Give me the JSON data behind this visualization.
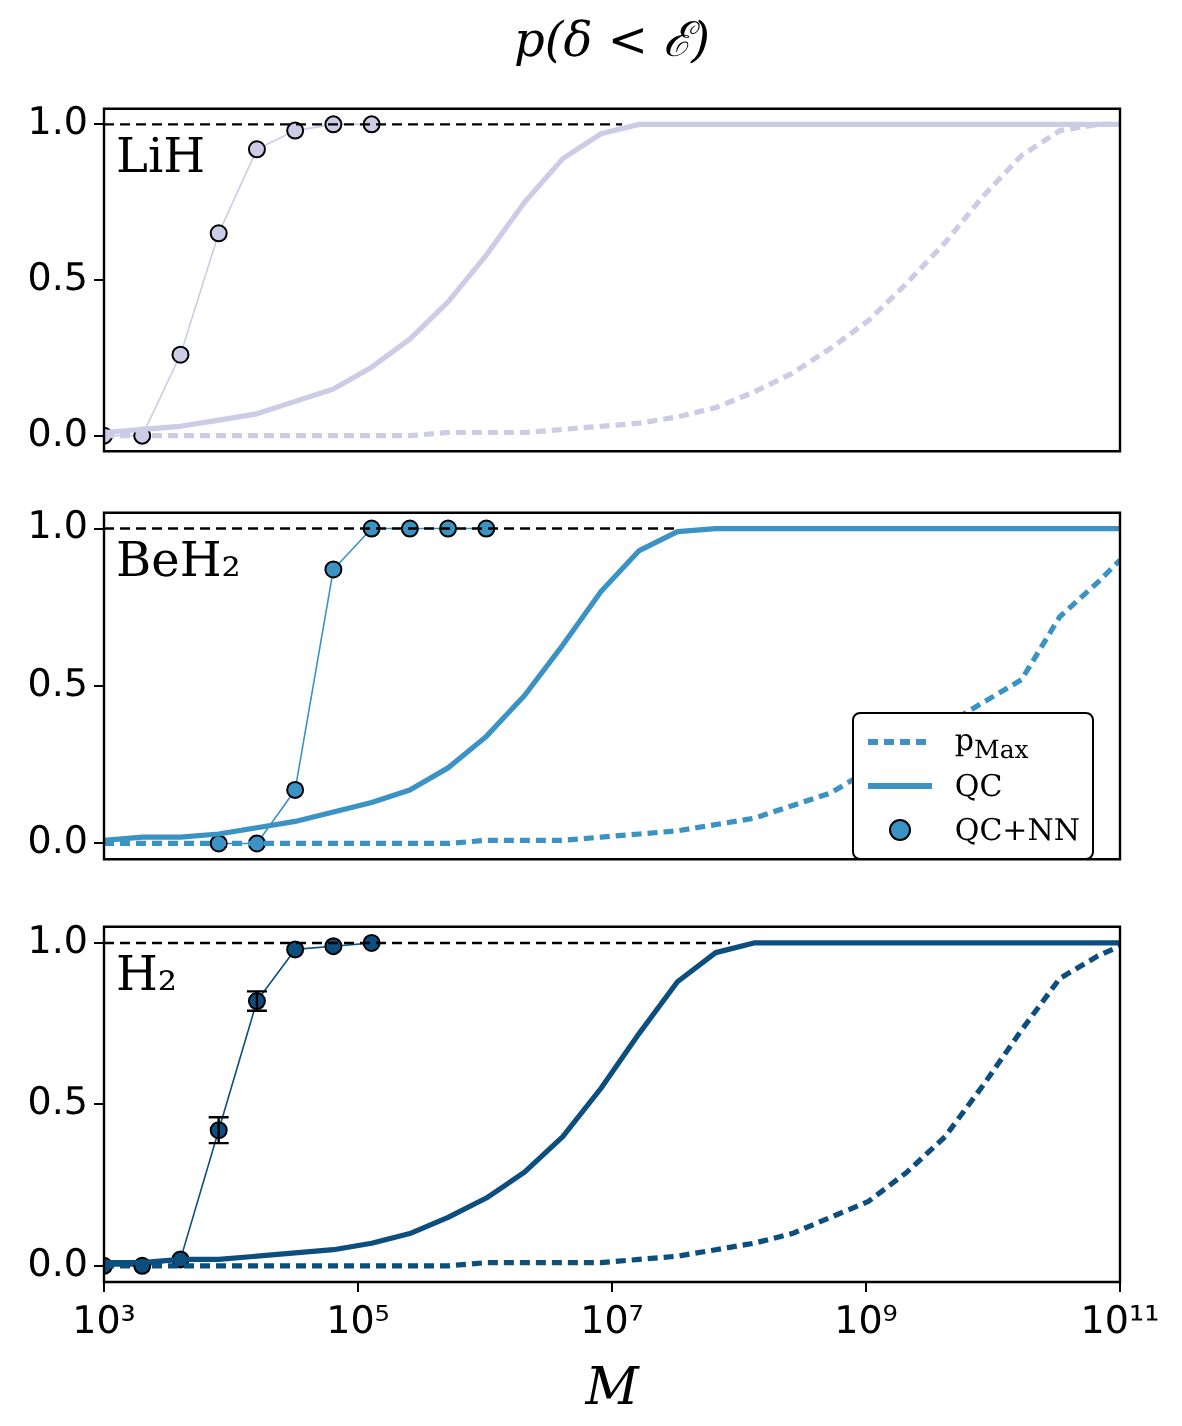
{
  "chart_data": [
    {
      "type": "line",
      "title": "p(δ < ℰ)",
      "log": "x",
      "tick_labels": "y",
      "annotations": [
        "LiH"
      ],
      "xlim": [
        1000,
        100000000000
      ],
      "ylim": [
        -0.05,
        1.05
      ],
      "yticks": [
        {
          "value": 0,
          "label": "0.0"
        },
        {
          "value": 0.5,
          "label": "0.5"
        },
        {
          "value": 1,
          "label": "1.0"
        }
      ],
      "x": [
        1000,
        2000,
        4000,
        8000,
        16000,
        32000,
        64000,
        128000,
        256000,
        512000,
        1024000,
        2048000,
        4096000,
        8192000,
        16384000,
        32768000,
        65536000,
        131072000,
        262144000,
        524288000,
        1048576000,
        2097152000,
        4194304000,
        8388608000,
        16777216000,
        33554432000,
        67108864000,
        100000000000
      ],
      "series": [
        {
          "type": "line",
          "color": "#000000",
          "line_style": "dashed",
          "marker": "none",
          "x": [
            1000,
            12000000
          ],
          "values": [
            1,
            1
          ]
        },
        {
          "color": "#cccce6",
          "line_style": "dashed",
          "marker": "none",
          "values": [
            0,
            0,
            0,
            0,
            0,
            0,
            0,
            0,
            0,
            0.01,
            0.01,
            0.01,
            0.02,
            0.03,
            0.04,
            0.06,
            0.09,
            0.14,
            0.2,
            0.28,
            0.37,
            0.49,
            0.62,
            0.77,
            0.9,
            0.98,
            1.0,
            1.0
          ]
        },
        {
          "color": "#cccce6",
          "line_style": "solid",
          "marker": "none",
          "values": [
            0.01,
            0.02,
            0.03,
            0.05,
            0.07,
            0.11,
            0.15,
            0.22,
            0.31,
            0.43,
            0.58,
            0.75,
            0.89,
            0.97,
            1.0,
            1.0,
            1.0,
            1.0,
            1.0,
            1.0,
            1.0,
            1.0,
            1.0,
            1.0,
            1.0,
            1.0,
            1.0,
            1.0
          ]
        },
        {
          "color": "#cccce6",
          "line_style": "solid",
          "marker": "circle",
          "x": [
            1000,
            2000,
            4000,
            8000,
            16000,
            32000,
            64000,
            128000
          ],
          "values": [
            0,
            0,
            0.26,
            0.65,
            0.92,
            0.98,
            1.0,
            1.0
          ]
        }
      ]
    },
    {
      "type": "line",
      "log": "x",
      "tick_labels": "y",
      "annotations": [
        "BeH₂"
      ],
      "legend": "bottom right",
      "xlim": [
        1000,
        100000000000
      ],
      "ylim": [
        -0.05,
        1.05
      ],
      "yticks": [
        {
          "value": 0,
          "label": "0.0"
        },
        {
          "value": 0.5,
          "label": "0.5"
        },
        {
          "value": 1,
          "label": "1.0"
        }
      ],
      "x": [
        1000,
        2000,
        4000,
        8000,
        16000,
        32000,
        64000,
        128000,
        256000,
        512000,
        1024000,
        2048000,
        4096000,
        8192000,
        16384000,
        32768000,
        65536000,
        131072000,
        262144000,
        524288000,
        1048576000,
        2097152000,
        4194304000,
        8388608000,
        16777216000,
        33554432000,
        67108864000,
        100000000000
      ],
      "series": [
        {
          "type": "line",
          "color": "#000000",
          "line_style": "dashed",
          "marker": "none",
          "x": [
            1000,
            32000000
          ],
          "values": [
            1,
            1
          ]
        },
        {
          "name": "p$_{Max}$",
          "color": "#3a93c3",
          "line_style": "dashed",
          "marker": "none",
          "values": [
            0,
            0,
            0,
            0,
            0,
            0,
            0,
            0,
            0,
            0,
            0.01,
            0.01,
            0.01,
            0.02,
            0.03,
            0.04,
            0.06,
            0.08,
            0.12,
            0.16,
            null,
            null,
            null,
            null,
            0.52,
            0.72,
            0.83,
            0.9
          ]
        },
        {
          "name": "QC",
          "color": "#3a93c3",
          "line_style": "solid",
          "marker": "none",
          "values": [
            0.01,
            0.02,
            0.02,
            0.03,
            0.05,
            0.07,
            0.1,
            0.13,
            0.17,
            0.24,
            0.34,
            0.47,
            0.63,
            0.8,
            0.93,
            0.99,
            1.0,
            1.0,
            1.0,
            1.0,
            1.0,
            1.0,
            1.0,
            1.0,
            1.0,
            1.0,
            1.0,
            1.0
          ]
        },
        {
          "name": "QC+NN",
          "color": "#3a93c3",
          "line_style": "solid",
          "marker": "circle",
          "x": [
            8000,
            16000,
            32000,
            64000,
            128000,
            256000,
            512000,
            1024000
          ],
          "values": [
            0,
            0,
            0.17,
            0.87,
            1,
            1,
            1,
            1
          ]
        }
      ]
    },
    {
      "type": "line",
      "log": "x",
      "xlabel": "M",
      "annotations": [
        "H₂"
      ],
      "xlim": [
        1000,
        100000000000
      ],
      "xticks": [
        {
          "value": 1000,
          "label": "10³"
        },
        {
          "value": 100000,
          "label": "10⁵"
        },
        {
          "value": 10000000,
          "label": "10⁷"
        },
        {
          "value": 1000000000,
          "label": "10⁹"
        },
        {
          "value": 100000000000,
          "label": "10¹¹"
        }
      ],
      "ylim": [
        -0.05,
        1.05
      ],
      "yticks": [
        {
          "value": 0,
          "label": "0.0"
        },
        {
          "value": 0.5,
          "label": "0.5"
        },
        {
          "value": 1,
          "label": "1.0"
        }
      ],
      "x": [
        1000,
        2000,
        4000,
        8000,
        16000,
        32000,
        64000,
        128000,
        256000,
        512000,
        1024000,
        2048000,
        4096000,
        8192000,
        16384000,
        32768000,
        65536000,
        131072000,
        262144000,
        524288000,
        1048576000,
        2097152000,
        4194304000,
        8388608000,
        16777216000,
        33554432000,
        67108864000,
        100000000000
      ],
      "series": [
        {
          "type": "line",
          "color": "#000000",
          "line_style": "dashed",
          "marker": "none",
          "x": [
            1000,
            85000000
          ],
          "values": [
            1,
            1
          ]
        },
        {
          "color": "#0c4e7d",
          "line_style": "dashed",
          "marker": "none",
          "values": [
            0,
            0,
            0,
            0,
            0,
            0,
            0,
            0,
            0,
            0,
            0.01,
            0.01,
            0.01,
            0.01,
            0.02,
            0.03,
            0.05,
            0.07,
            0.1,
            0.15,
            0.2,
            0.29,
            0.4,
            0.56,
            0.73,
            0.89,
            0.96,
            0.99
          ]
        },
        {
          "color": "#0c4e7d",
          "line_style": "solid",
          "marker": "none",
          "values": [
            0.01,
            0.01,
            0.02,
            0.02,
            0.03,
            0.04,
            0.05,
            0.07,
            0.1,
            0.15,
            0.21,
            0.29,
            0.4,
            0.55,
            0.72,
            0.88,
            0.97,
            1.0,
            1.0,
            1.0,
            1.0,
            1.0,
            1.0,
            1.0,
            1.0,
            1.0,
            1.0,
            1.0
          ]
        },
        {
          "color": "#0c4e7d",
          "line_style": "solid",
          "marker": "circle",
          "x": [
            1000,
            2000,
            4000,
            8000,
            16000,
            32000,
            64000,
            128000
          ],
          "values": [
            0,
            0,
            0.02,
            0.42,
            0.82,
            0.98,
            0.99,
            1.0
          ],
          "errors": [
            null,
            null,
            null,
            0.04,
            0.03,
            null,
            null,
            null
          ]
        }
      ]
    }
  ]
}
